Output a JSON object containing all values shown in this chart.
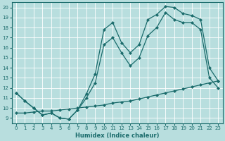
{
  "xlabel": "Humidex (Indice chaleur)",
  "xlim": [
    -0.5,
    23.5
  ],
  "ylim": [
    8.5,
    20.5
  ],
  "xticks": [
    0,
    1,
    2,
    3,
    4,
    5,
    6,
    7,
    8,
    9,
    10,
    11,
    12,
    13,
    14,
    15,
    16,
    17,
    18,
    19,
    20,
    21,
    22,
    23
  ],
  "yticks": [
    9,
    10,
    11,
    12,
    13,
    14,
    15,
    16,
    17,
    18,
    19,
    20
  ],
  "bg_color": "#b8dede",
  "grid_color": "#ffffff",
  "line_color": "#1a6b6b",
  "line1_x": [
    0,
    1,
    2,
    3,
    4,
    5,
    6,
    7,
    8,
    9,
    10,
    11,
    12,
    13,
    14,
    15,
    16,
    17,
    18,
    19,
    20,
    21,
    22,
    23
  ],
  "line1_y": [
    11.5,
    10.7,
    10.0,
    9.3,
    9.5,
    9.0,
    8.9,
    9.8,
    11.4,
    13.4,
    17.8,
    18.5,
    16.5,
    15.5,
    16.3,
    18.8,
    19.3,
    20.1,
    20.0,
    19.4,
    19.2,
    18.8,
    14.0,
    12.7
  ],
  "line2_x": [
    0,
    1,
    2,
    3,
    4,
    5,
    6,
    7,
    8,
    9,
    10,
    11,
    12,
    13,
    14,
    15,
    16,
    17,
    18,
    19,
    20,
    21,
    22,
    23
  ],
  "line2_y": [
    11.5,
    10.7,
    10.0,
    9.3,
    9.5,
    9.0,
    8.9,
    9.8,
    11.0,
    12.5,
    16.3,
    17.0,
    15.5,
    14.2,
    15.0,
    17.2,
    18.0,
    19.5,
    18.8,
    18.5,
    18.5,
    17.8,
    13.0,
    12.0
  ],
  "line3_x": [
    0,
    1,
    2,
    3,
    4,
    5,
    6,
    7,
    8,
    9,
    10,
    11,
    12,
    13,
    14,
    15,
    16,
    17,
    18,
    19,
    20,
    21,
    22,
    23
  ],
  "line3_y": [
    9.5,
    9.5,
    9.6,
    9.7,
    9.7,
    9.8,
    9.9,
    10.0,
    10.1,
    10.2,
    10.3,
    10.5,
    10.6,
    10.7,
    10.9,
    11.1,
    11.3,
    11.5,
    11.7,
    11.9,
    12.1,
    12.3,
    12.5,
    12.7
  ],
  "figsize": [
    3.2,
    2.0
  ],
  "dpi": 100
}
